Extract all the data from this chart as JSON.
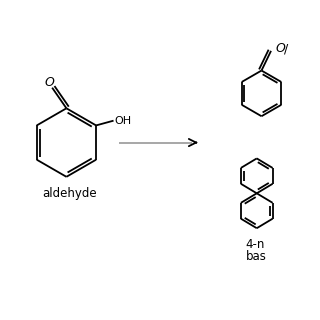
{
  "bg_color": "#ffffff",
  "line_color": "#000000",
  "arrow_shaft_color": "#808080",
  "label_left": "aldehyde",
  "label_right_line1": "4-n",
  "label_right_line2": "bas",
  "lw": 1.3
}
